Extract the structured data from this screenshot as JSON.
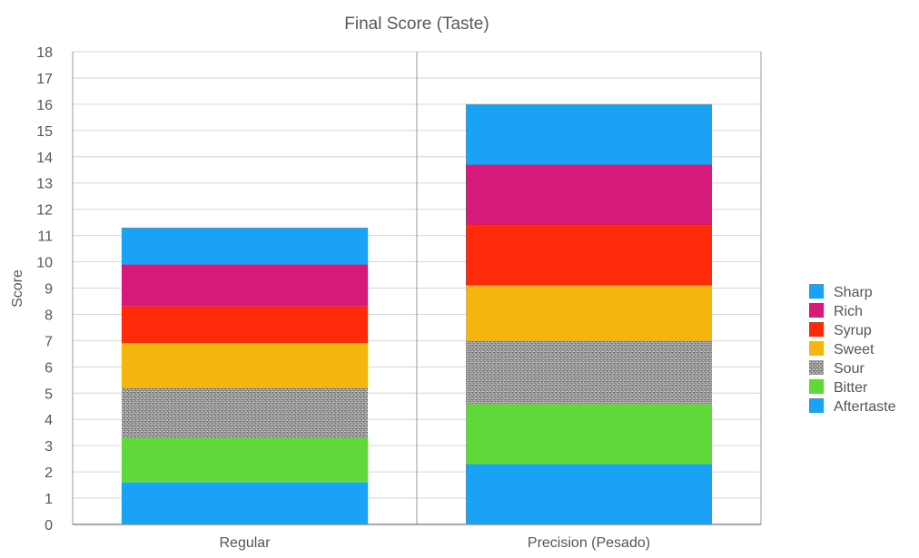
{
  "chart_data": {
    "type": "bar",
    "stacked": true,
    "title": "Final Score (Taste)",
    "xlabel": "",
    "ylabel": "Score",
    "ylim": [
      0,
      18
    ],
    "yticks": [
      0,
      1,
      2,
      3,
      4,
      5,
      6,
      7,
      8,
      9,
      10,
      11,
      12,
      13,
      14,
      15,
      16,
      17,
      18
    ],
    "grid": true,
    "legend_position": "right",
    "categories": [
      "Regular",
      "Precision (Pesado)"
    ],
    "series": [
      {
        "name": "Aftertaste",
        "color": "#1aa3f5",
        "values": [
          1.6,
          2.3
        ]
      },
      {
        "name": "Bitter",
        "color": "#5fd93a",
        "values": [
          1.7,
          2.3
        ]
      },
      {
        "name": "Sour",
        "color": "#8a8a8a",
        "pattern": "dither",
        "values": [
          1.9,
          2.4
        ]
      },
      {
        "name": "Sweet",
        "color": "#f6b40e",
        "values": [
          1.7,
          2.1
        ]
      },
      {
        "name": "Syrup",
        "color": "#ff2a0a",
        "values": [
          1.4,
          2.3
        ]
      },
      {
        "name": "Rich",
        "color": "#d61a79",
        "values": [
          1.6,
          2.3
        ]
      },
      {
        "name": "Sharp",
        "color": "#1aa3f5",
        "values": [
          1.4,
          2.3
        ]
      }
    ],
    "legend_order": [
      "Sharp",
      "Rich",
      "Syrup",
      "Sweet",
      "Sour",
      "Bitter",
      "Aftertaste"
    ]
  }
}
